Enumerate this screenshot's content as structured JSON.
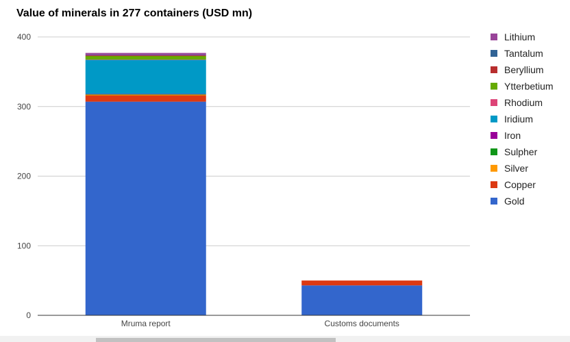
{
  "chart_data": {
    "type": "bar",
    "stacked": true,
    "title": "Value of minerals in 277 containers (USD mn)",
    "xlabel": "",
    "ylabel": "",
    "categories": [
      "Mruma report",
      "Customs documents"
    ],
    "ylim": [
      0,
      400
    ],
    "yticks": [
      0,
      100,
      200,
      300,
      400
    ],
    "grid": true,
    "legend_position": "right",
    "series": [
      {
        "name": "Gold",
        "color": "#3366cc",
        "values": [
          307,
          43
        ]
      },
      {
        "name": "Copper",
        "color": "#dc3912",
        "values": [
          9,
          7
        ]
      },
      {
        "name": "Silver",
        "color": "#ff9900",
        "values": [
          1,
          0
        ]
      },
      {
        "name": "Sulpher",
        "color": "#109618",
        "values": [
          0.5,
          0
        ]
      },
      {
        "name": "Iron",
        "color": "#990099",
        "values": [
          0.5,
          0
        ]
      },
      {
        "name": "Iridium",
        "color": "#0099c6",
        "values": [
          49,
          0
        ]
      },
      {
        "name": "Rhodium",
        "color": "#dd4477",
        "values": [
          0.5,
          0
        ]
      },
      {
        "name": "Ytterbetium",
        "color": "#66aa00",
        "values": [
          5,
          0
        ]
      },
      {
        "name": "Beryllium",
        "color": "#b82e2e",
        "values": [
          1,
          0
        ]
      },
      {
        "name": "Tantalum",
        "color": "#316395",
        "values": [
          0.5,
          0
        ]
      },
      {
        "name": "Lithium",
        "color": "#994499",
        "values": [
          3,
          0
        ]
      }
    ]
  }
}
